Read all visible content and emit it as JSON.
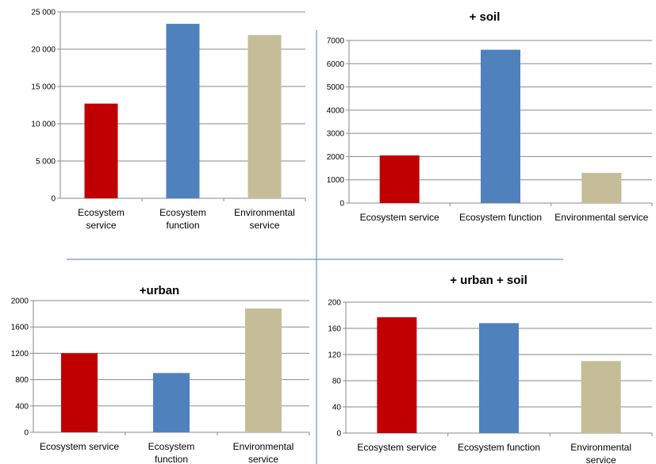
{
  "chart_data": [
    {
      "type": "bar",
      "title": "",
      "categories": [
        [
          "Ecosystem",
          "service"
        ],
        [
          "Ecosystem",
          "function"
        ],
        [
          "Environmental",
          "service"
        ]
      ],
      "values": [
        12700,
        23400,
        21900
      ],
      "colors": [
        "#c00000",
        "#4f81bd",
        "#c4bd97"
      ],
      "ylim": [
        0,
        25000
      ],
      "yticks": [
        "0",
        "5 000",
        "10 000",
        "15 000",
        "20 000",
        "25 000"
      ],
      "grid": true,
      "legend": "none"
    },
    {
      "type": "bar",
      "title": "+ soil",
      "categories": [
        [
          "Ecosystem service"
        ],
        [
          "Ecosystem function"
        ],
        [
          "Environmental service"
        ]
      ],
      "values": [
        2050,
        6600,
        1300
      ],
      "colors": [
        "#c00000",
        "#4f81bd",
        "#c4bd97"
      ],
      "ylim": [
        0,
        7000
      ],
      "yticks": [
        "0",
        "1000",
        "2000",
        "3000",
        "4000",
        "5000",
        "6000",
        "7000"
      ],
      "grid": true,
      "legend": "none"
    },
    {
      "type": "bar",
      "title": "+urban",
      "categories": [
        [
          "Ecosystem service"
        ],
        [
          "Ecosystem",
          "function"
        ],
        [
          "Environmental",
          "service"
        ]
      ],
      "values": [
        1200,
        900,
        1880
      ],
      "colors": [
        "#c00000",
        "#4f81bd",
        "#c4bd97"
      ],
      "ylim": [
        0,
        2000
      ],
      "yticks": [
        "0",
        "400",
        "800",
        "1200",
        "1600",
        "2000"
      ],
      "grid": true,
      "legend": "none"
    },
    {
      "type": "bar",
      "title": "+ urban + soil",
      "categories": [
        [
          "Ecosystem service"
        ],
        [
          "Ecosystem function"
        ],
        [
          "Environmental",
          "service"
        ]
      ],
      "values": [
        177,
        168,
        110
      ],
      "colors": [
        "#c00000",
        "#4f81bd",
        "#c4bd97"
      ],
      "ylim": [
        0,
        200
      ],
      "yticks": [
        "0",
        "40",
        "80",
        "120",
        "160",
        "200"
      ],
      "grid": true,
      "legend": "none"
    }
  ]
}
